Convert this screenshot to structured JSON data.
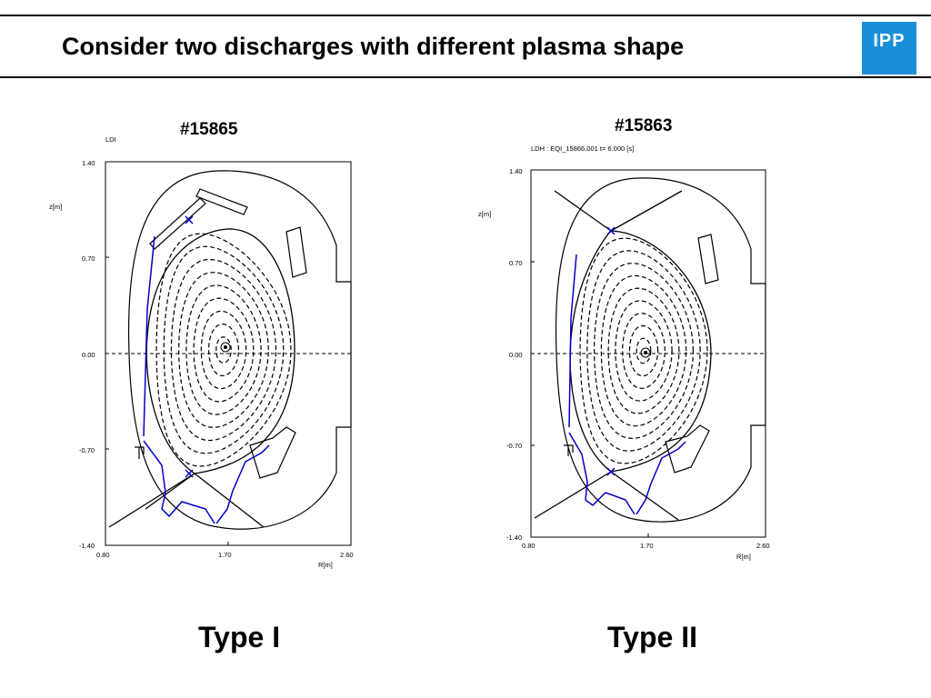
{
  "slide": {
    "title": "Consider two discharges with different plasma shape",
    "logo_text": "IPP",
    "accent_color": "#1a8fd8",
    "plasma_marker_color": "#0000cc"
  },
  "panels": [
    {
      "shot": "#15865",
      "header": "LDI",
      "type_label": "Type I",
      "ylabel": "z[m]",
      "xlabel": "R[m]",
      "yticks": [
        "1.40",
        "0.70",
        "0.00",
        "-0.70",
        "-1.40"
      ],
      "xticks": [
        "0.80",
        "1.70",
        "2.60"
      ]
    },
    {
      "shot": "#15863",
      "header": "LDH : EQI_15866.001   t=  6.000  [s]",
      "type_label": "Type II",
      "ylabel": "z[m]",
      "xlabel": "R[m]",
      "yticks": [
        "1.40",
        "0.70",
        "0.00",
        "-0.70",
        "-1.40"
      ],
      "xticks": [
        "0.80",
        "1.70",
        "2.60"
      ]
    }
  ]
}
